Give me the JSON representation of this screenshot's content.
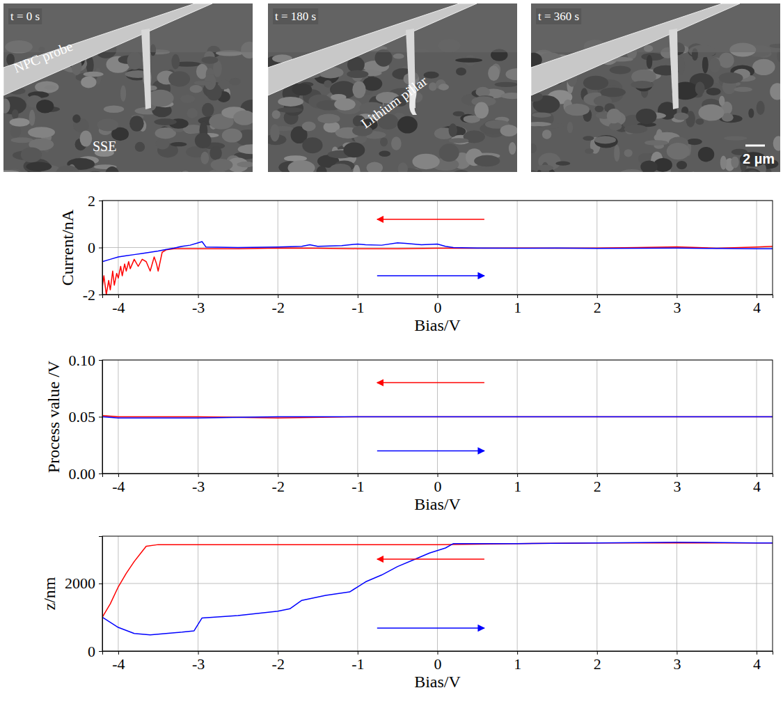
{
  "micrographs": [
    {
      "time_label": "t = 0 s",
      "labels": [
        "NPC probe",
        "SSE"
      ]
    },
    {
      "time_label": "t = 180 s",
      "labels": [
        "Lithium pillar"
      ]
    },
    {
      "time_label": "t = 360 s",
      "scale_bar": "2 µm"
    }
  ],
  "chart_data": [
    {
      "type": "line",
      "x_label": "Bias/V",
      "y_label": "Current/nA",
      "xlim": [
        -4.2,
        4.2
      ],
      "xticks": [
        -4,
        -3,
        -2,
        -1,
        0,
        1,
        2,
        3,
        4
      ],
      "ylim": [
        -2,
        2
      ],
      "yticks": [
        -2,
        0,
        2
      ],
      "grid": true,
      "series": [
        {
          "color": "#ff0000",
          "x": [
            -4.2,
            -4.18,
            -4.15,
            -4.12,
            -4.1,
            -4.07,
            -4.05,
            -4.02,
            -4.0,
            -3.97,
            -3.95,
            -3.92,
            -3.9,
            -3.87,
            -3.85,
            -3.8,
            -3.75,
            -3.7,
            -3.65,
            -3.6,
            -3.55,
            -3.52,
            -3.5,
            -3.45,
            -3.4,
            -3.3,
            -3.2,
            -3.0,
            -2.5,
            -2,
            -1.5,
            -1,
            -0.5,
            0,
            0.5,
            1,
            1.5,
            2,
            2.5,
            3,
            3.5,
            4,
            4.2
          ],
          "values": [
            -1.7,
            -1.2,
            -2.0,
            -1.4,
            -1.8,
            -1.0,
            -1.6,
            -1.1,
            -1.3,
            -0.8,
            -1.2,
            -0.7,
            -1.0,
            -0.6,
            -0.9,
            -0.5,
            -0.8,
            -0.5,
            -0.6,
            -1.0,
            -0.4,
            -0.7,
            -1.0,
            -0.2,
            -0.1,
            -0.05,
            -0.05,
            -0.05,
            -0.05,
            -0.02,
            -0.03,
            -0.05,
            -0.05,
            -0.03,
            -0.03,
            -0.02,
            -0.03,
            -0.02,
            0,
            0.03,
            -0.03,
            0.02,
            0.05
          ]
        },
        {
          "color": "#0000ff",
          "x": [
            -4.2,
            -4.1,
            -4.0,
            -3.9,
            -3.8,
            -3.7,
            -3.6,
            -3.5,
            -3.4,
            -3.3,
            -3.2,
            -3.1,
            -3.0,
            -2.95,
            -2.9,
            -2.5,
            -2.0,
            -1.7,
            -1.6,
            -1.5,
            -1.2,
            -1.0,
            -0.9,
            -0.7,
            -0.5,
            -0.4,
            -0.2,
            0,
            0.1,
            0.2,
            0.5,
            1,
            1.5,
            2,
            2.5,
            3,
            3.5,
            4,
            4.2
          ],
          "values": [
            -0.6,
            -0.5,
            -0.4,
            -0.35,
            -0.3,
            -0.25,
            -0.2,
            -0.15,
            -0.08,
            -0.02,
            0.05,
            0.1,
            0.2,
            0.25,
            0.02,
            0.0,
            0.02,
            0.05,
            0.12,
            0.05,
            0.08,
            0.15,
            0.12,
            0.1,
            0.2,
            0.18,
            0.12,
            0.15,
            0.05,
            0.0,
            -0.02,
            -0.03,
            -0.02,
            -0.04,
            -0.03,
            -0.02,
            -0.04,
            -0.05,
            -0.05
          ]
        }
      ]
    },
    {
      "type": "line",
      "x_label": "Bias/V",
      "y_label": "Process value /V",
      "xlim": [
        -4.2,
        4.2
      ],
      "xticks": [
        -4,
        -3,
        -2,
        -1,
        0,
        1,
        2,
        3,
        4
      ],
      "ylim": [
        0,
        0.1
      ],
      "yticks": [
        {
          "value": 0,
          "label": "0.00"
        },
        {
          "value": 0.05,
          "label": "0.05"
        },
        {
          "value": 0.1,
          "label": "0.10"
        }
      ],
      "grid": true,
      "series": [
        {
          "color": "#ff0000",
          "x": [
            -4.2,
            -4,
            -3,
            -2,
            -1,
            0,
            1,
            2,
            3,
            4,
            4.2
          ],
          "values": [
            0.051,
            0.05,
            0.05,
            0.049,
            0.05,
            0.05,
            0.05,
            0.05,
            0.05,
            0.05,
            0.05
          ]
        },
        {
          "color": "#0000ff",
          "x": [
            -4.2,
            -4,
            -3,
            -2,
            -1,
            0,
            1,
            2,
            3,
            4,
            4.2
          ],
          "values": [
            0.05,
            0.049,
            0.049,
            0.05,
            0.05,
            0.05,
            0.05,
            0.05,
            0.05,
            0.05,
            0.05
          ]
        }
      ]
    },
    {
      "type": "line",
      "x_label": "Bias/V",
      "y_label": "z/nm",
      "xlim": [
        -4.2,
        4.2
      ],
      "xticks": [
        -4,
        -3,
        -2,
        -1,
        0,
        1,
        2,
        3,
        4
      ],
      "ylim": [
        0,
        3400
      ],
      "yticks": [
        0,
        2000
      ],
      "grid": true,
      "series": [
        {
          "color": "#ff0000",
          "x": [
            -4.2,
            -4.1,
            -4.0,
            -3.9,
            -3.8,
            -3.7,
            -3.65,
            -3.5,
            -3,
            -2,
            -1,
            0,
            1,
            2,
            3,
            4,
            4.2
          ],
          "values": [
            1000,
            1400,
            1900,
            2300,
            2650,
            2950,
            3100,
            3150,
            3150,
            3150,
            3150,
            3150,
            3180,
            3200,
            3200,
            3200,
            3200
          ]
        },
        {
          "color": "#0000ff",
          "x": [
            -4.2,
            -4.0,
            -3.8,
            -3.6,
            -3.4,
            -3.2,
            -3.05,
            -2.95,
            -2.5,
            -2.0,
            -1.85,
            -1.7,
            -1.4,
            -1.1,
            -1.0,
            -0.9,
            -0.7,
            -0.5,
            -0.3,
            -0.1,
            0.1,
            0.2,
            1,
            2,
            3,
            4,
            4.2
          ],
          "values": [
            1000,
            700,
            520,
            480,
            520,
            560,
            600,
            980,
            1050,
            1180,
            1250,
            1500,
            1650,
            1750,
            1900,
            2050,
            2250,
            2500,
            2700,
            2900,
            3050,
            3180,
            3180,
            3200,
            3220,
            3200,
            3200
          ]
        }
      ]
    }
  ]
}
